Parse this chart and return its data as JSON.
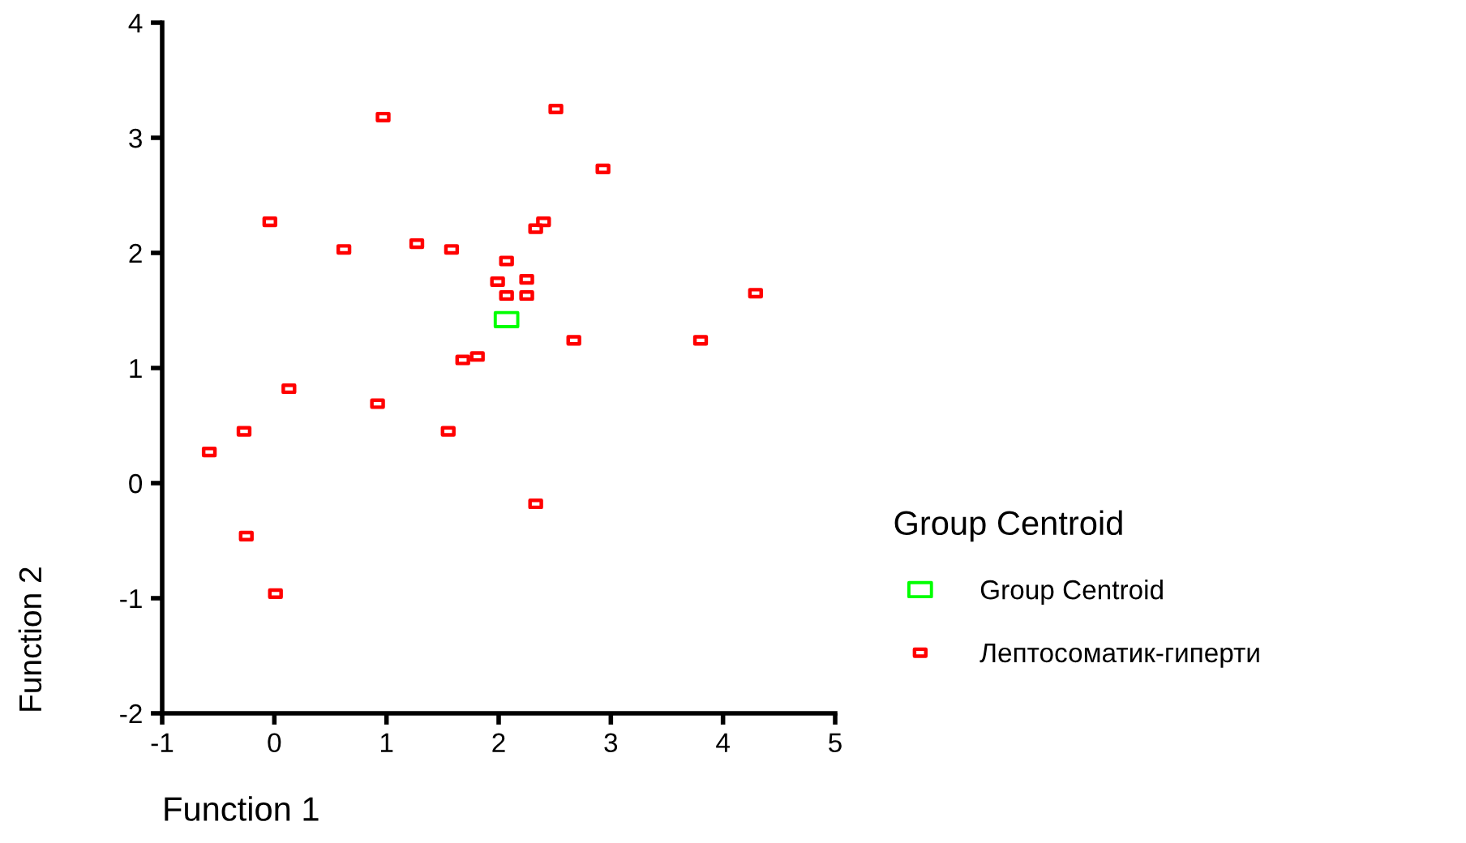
{
  "chart_data": {
    "type": "scatter",
    "xlabel": "Function 1",
    "ylabel": "Function 2",
    "legend_title": "Group Centroid",
    "legend": "right",
    "grid": false,
    "marker": "square",
    "xlim": [
      -1,
      5
    ],
    "xticks": [
      -1,
      0,
      1,
      2,
      3,
      4,
      5
    ],
    "ylim": [
      -2,
      4
    ],
    "yticks": [
      -2,
      -1,
      0,
      1,
      2,
      3,
      4
    ],
    "series": [
      {
        "name": "Group Centroid",
        "color": "#00ff00",
        "x": [
          2.07
        ],
        "values": [
          1.42
        ]
      },
      {
        "name": "Лептосоматик-гиперти",
        "color": "#ff0000",
        "x": [
          -0.58,
          -0.27,
          -0.25,
          0.01,
          0.13,
          -0.04,
          0.62,
          0.97,
          0.92,
          1.27,
          1.58,
          1.55,
          1.68,
          1.81,
          1.99,
          2.07,
          2.07,
          2.25,
          2.25,
          2.33,
          2.4,
          2.33,
          2.51,
          2.93,
          2.67,
          3.8,
          4.29
        ],
        "values": [
          0.27,
          0.45,
          -0.46,
          -0.96,
          0.82,
          2.27,
          2.03,
          3.18,
          0.69,
          2.08,
          2.03,
          0.45,
          1.07,
          1.1,
          1.75,
          1.93,
          1.63,
          1.77,
          1.63,
          2.21,
          2.27,
          -0.18,
          3.25,
          2.73,
          1.24,
          1.24,
          1.65
        ]
      }
    ]
  }
}
